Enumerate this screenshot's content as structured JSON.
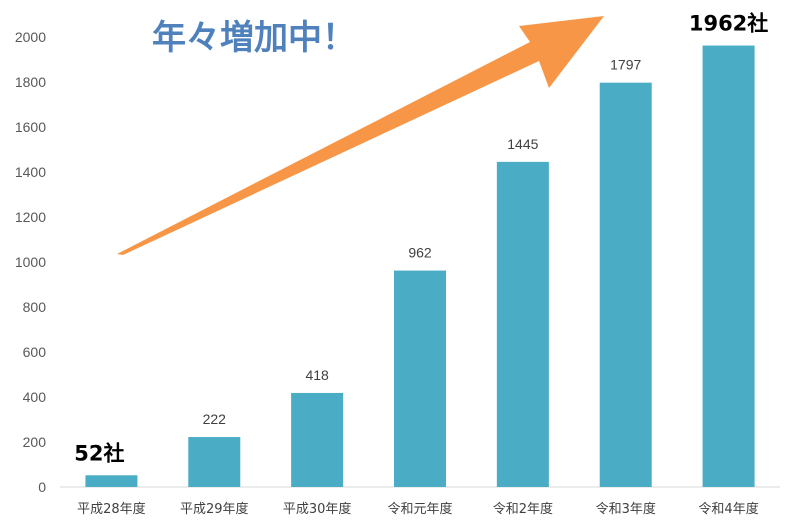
{
  "chart_data": {
    "type": "bar",
    "categories": [
      "平成28年度",
      "平成29年度",
      "平成30年度",
      "令和元年度",
      "令和2年度",
      "令和3年度",
      "令和4年度"
    ],
    "values": [
      52,
      222,
      418,
      962,
      1445,
      1797,
      1962
    ],
    "data_labels": [
      "52社",
      "222",
      "418",
      "962",
      "1445",
      "1797",
      "1962社"
    ],
    "title": "年々増加中！",
    "ylim": [
      0,
      2000
    ],
    "yticks": [
      0,
      200,
      400,
      600,
      800,
      1000,
      1200,
      1400,
      1600,
      1800,
      2000
    ],
    "grid": false,
    "legend": "none"
  },
  "colors": {
    "bar": "#4BACC6",
    "arrow": "#F79646",
    "headline": "#4F81BD",
    "axis": "#D9D9D9"
  }
}
